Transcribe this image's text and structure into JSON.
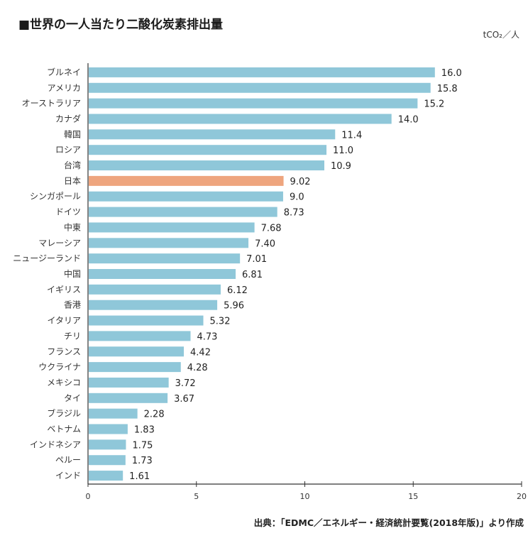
{
  "header": {
    "title": "■世界の一人当たり二酸化炭素排出量",
    "unit": "tCO₂／人"
  },
  "footer": {
    "source": "出典：「EDMC／エネルギー・経済統計要覧(2018年版)」より作成"
  },
  "colors": {
    "bar": "#8fc7d9",
    "highlight": "#eea57e",
    "axis": "#333333"
  },
  "chart_data": {
    "type": "bar",
    "orientation": "horizontal",
    "title": "■世界の一人当たり二酸化炭素排出量",
    "xlabel": "",
    "ylabel": "",
    "unit": "tCO₂／人",
    "xlim": [
      0,
      20
    ],
    "ticks": [
      0,
      5,
      10,
      15,
      20
    ],
    "highlight": "日本",
    "categories": [
      "ブルネイ",
      "アメリカ",
      "オーストラリア",
      "カナダ",
      "韓国",
      "ロシア",
      "台湾",
      "日本",
      "シンガポール",
      "ドイツ",
      "中東",
      "マレーシア",
      "ニュージーランド",
      "中国",
      "イギリス",
      "香港",
      "イタリア",
      "チリ",
      "フランス",
      "ウクライナ",
      "メキシコ",
      "タイ",
      "ブラジル",
      "ベトナム",
      "インドネシア",
      "ペルー",
      "インド"
    ],
    "values": [
      16.0,
      15.8,
      15.2,
      14.0,
      11.4,
      11.0,
      10.9,
      9.02,
      9.0,
      8.73,
      7.68,
      7.4,
      7.01,
      6.81,
      6.12,
      5.96,
      5.32,
      4.73,
      4.42,
      4.28,
      3.72,
      3.67,
      2.28,
      1.83,
      1.75,
      1.73,
      1.61
    ],
    "value_labels": [
      "16.0",
      "15.8",
      "15.2",
      "14.0",
      "11.4",
      "11.0",
      "10.9",
      "9.02",
      "9.0",
      "8.73",
      "7.68",
      "7.40",
      "7.01",
      "6.81",
      "6.12",
      "5.96",
      "5.32",
      "4.73",
      "4.42",
      "4.28",
      "3.72",
      "3.67",
      "2.28",
      "1.83",
      "1.75",
      "1.73",
      "1.61"
    ]
  }
}
